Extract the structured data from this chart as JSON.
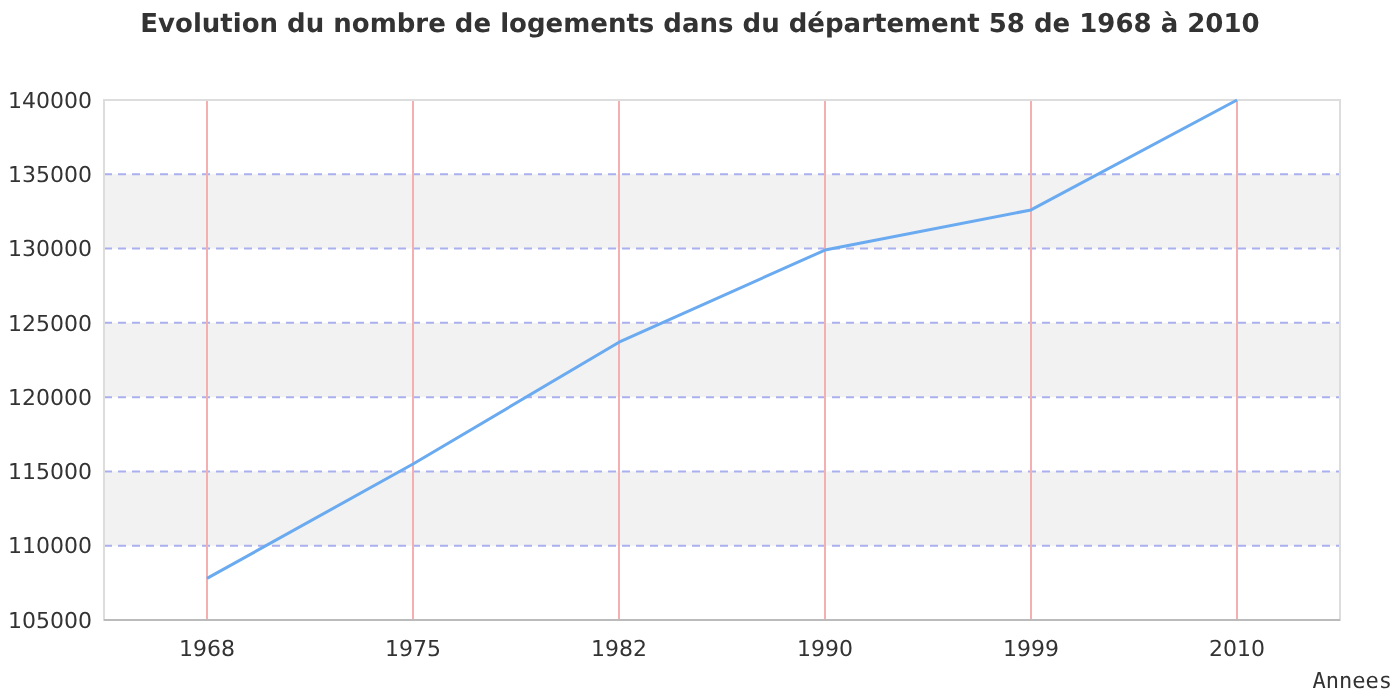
{
  "chart_data": {
    "type": "line",
    "title": "Evolution du nombre de logements dans du département 58 de 1968 à 2010",
    "xlabel": "Annees",
    "categories": [
      "1968",
      "1975",
      "1982",
      "1990",
      "1999",
      "2010"
    ],
    "series": [
      {
        "color": "#6aaaf0",
        "values": [
          107800,
          115500,
          123700,
          129900,
          132600,
          140000
        ]
      }
    ],
    "ylim": [
      105000,
      140000
    ],
    "yticks": [
      105000,
      110000,
      115000,
      120000,
      125000,
      130000,
      135000,
      140000
    ],
    "grid": true,
    "marker": "none",
    "line_style": "solid",
    "bands": [
      {
        "axis": "y",
        "from": 110000,
        "to": 115000,
        "color": "#f2f2f2"
      },
      {
        "axis": "y",
        "from": 120000,
        "to": 125000,
        "color": "#f2f2f2"
      },
      {
        "axis": "y",
        "from": 130000,
        "to": 135000,
        "color": "#f2f2f2"
      }
    ]
  }
}
